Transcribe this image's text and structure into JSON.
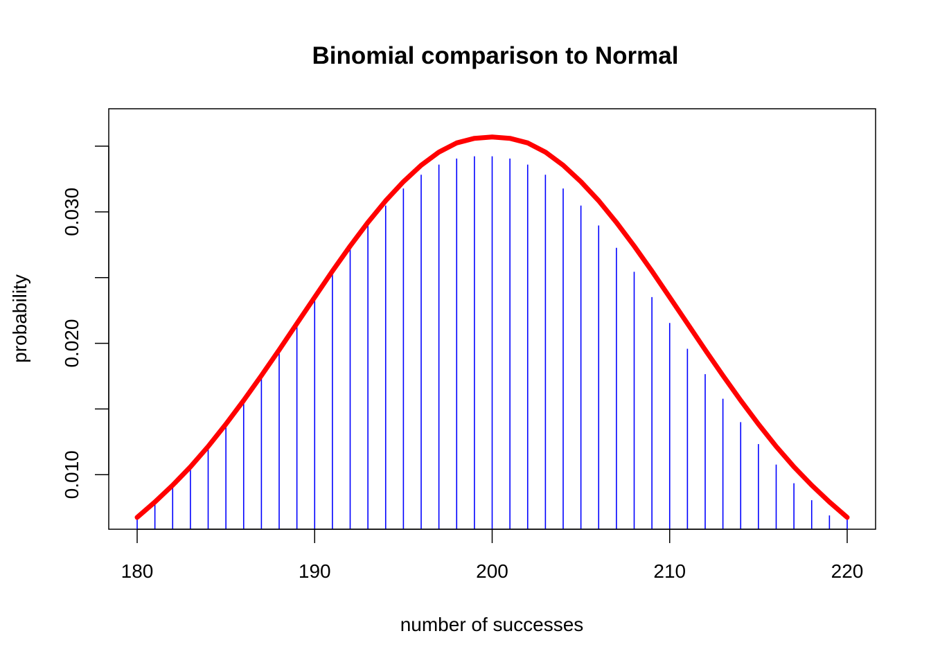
{
  "chart_data": {
    "type": "line",
    "title": "Binomial comparison to Normal",
    "xlabel": "number of successes",
    "ylabel": "probability",
    "xlim": [
      178.4,
      221.6
    ],
    "ylim": [
      0.00585,
      0.03785
    ],
    "x_ticks": [
      180,
      190,
      200,
      210,
      220
    ],
    "x_tick_labels": [
      "180",
      "190",
      "200",
      "210",
      "220"
    ],
    "y_ticks": [
      0.01,
      0.015,
      0.02,
      0.025,
      0.03,
      0.035
    ],
    "y_tick_labels": [
      "0.010",
      "",
      "0.020",
      "",
      "0.030",
      ""
    ],
    "grid": false,
    "legend": "none",
    "series": [
      {
        "kind": "spikes",
        "color": "#0000ff",
        "x": [
          180,
          181,
          182,
          183,
          184,
          185,
          186,
          187,
          188,
          189,
          190,
          191,
          192,
          193,
          194,
          195,
          196,
          197,
          198,
          199,
          200,
          201,
          202,
          203,
          204,
          205,
          206,
          207,
          208,
          209,
          210,
          211,
          212,
          213,
          214,
          215,
          216,
          217,
          218,
          219,
          220
        ],
        "values": [
          0.0069,
          0.00806,
          0.00935,
          0.01077,
          0.01233,
          0.014,
          0.01578,
          0.01765,
          0.01958,
          0.02155,
          0.02352,
          0.02544,
          0.02727,
          0.02897,
          0.03048,
          0.03178,
          0.03283,
          0.0336,
          0.03406,
          0.03423,
          0.03423,
          0.03406,
          0.0336,
          0.03283,
          0.03178,
          0.03048,
          0.02897,
          0.02727,
          0.02544,
          0.02352,
          0.02155,
          0.01958,
          0.01765,
          0.01578,
          0.014,
          0.01233,
          0.01077,
          0.00935,
          0.00806,
          0.0069,
          0.0069
        ]
      },
      {
        "kind": "line",
        "color": "#ff0000",
        "x": [
          180,
          181,
          182,
          183,
          184,
          185,
          186,
          187,
          188,
          189,
          190,
          191,
          192,
          193,
          194,
          195,
          196,
          197,
          198,
          199,
          200,
          201,
          202,
          203,
          204,
          205,
          206,
          207,
          208,
          209,
          210,
          211,
          212,
          213,
          214,
          215,
          216,
          217,
          218,
          219,
          220
        ],
        "values": [
          0.00675,
          0.00792,
          0.0092,
          0.0106,
          0.01215,
          0.01385,
          0.01565,
          0.01755,
          0.0195,
          0.0215,
          0.0235,
          0.0255,
          0.0274,
          0.0292,
          0.03085,
          0.0323,
          0.03355,
          0.03455,
          0.03525,
          0.0356,
          0.0357,
          0.0356,
          0.03525,
          0.03455,
          0.03355,
          0.0323,
          0.03085,
          0.0292,
          0.0274,
          0.0255,
          0.0235,
          0.0215,
          0.0195,
          0.01755,
          0.01565,
          0.01385,
          0.01215,
          0.0106,
          0.0092,
          0.00792,
          0.00675
        ]
      }
    ]
  }
}
